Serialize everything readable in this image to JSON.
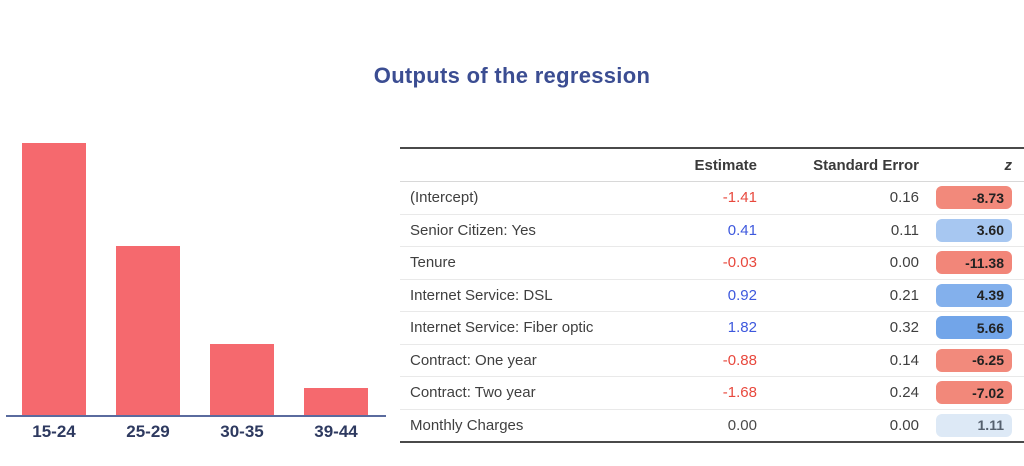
{
  "title": {
    "text": "Outputs of the regression",
    "color": "#3b4d92"
  },
  "colors": {
    "bar": "#f5696e",
    "axis_line": "#5a6b9e",
    "axis_label": "#2e3a60",
    "table_border": "#4a4a4a",
    "estimate_negative": "#e8483d",
    "estimate_positive": "#3d58dd",
    "estimate_neutral": "#4a4a4a"
  },
  "chart_data": [
    {
      "type": "bar",
      "categories": [
        "15-24",
        "25-29",
        "30-35",
        "39-44"
      ],
      "values": [
        1.0,
        0.62,
        0.26,
        0.1
      ],
      "note": "no y-axis, gridlines or value labels shown; values are relative bar heights (tallest = 1.00)",
      "title": "",
      "xlabel": "",
      "ylabel": "",
      "ylim": [
        0,
        1.05
      ],
      "grid": false,
      "legend": false,
      "bar_color": "#f5696e"
    },
    {
      "type": "table",
      "columns": [
        "",
        "Estimate",
        "Standard Error",
        "z"
      ],
      "rows": [
        {
          "label": "(Intercept)",
          "estimate": "-1.41",
          "estimate_color": "#e8483d",
          "std_error": "0.16",
          "z": "-8.73",
          "z_bg": "#f2897b",
          "z_text": "#222222"
        },
        {
          "label": "Senior Citizen: Yes",
          "estimate": "0.41",
          "estimate_color": "#3d58dd",
          "std_error": "0.11",
          "z": "3.60",
          "z_bg": "#a7c7f1",
          "z_text": "#222222"
        },
        {
          "label": "Tenure",
          "estimate": "-0.03",
          "estimate_color": "#e8483d",
          "std_error": "0.00",
          "z": "-11.38",
          "z_bg": "#f28679",
          "z_text": "#222222"
        },
        {
          "label": "Internet Service: DSL",
          "estimate": "0.92",
          "estimate_color": "#3d58dd",
          "std_error": "0.21",
          "z": "4.39",
          "z_bg": "#83b0ec",
          "z_text": "#222222"
        },
        {
          "label": "Internet Service: Fiber optic",
          "estimate": "1.82",
          "estimate_color": "#3d58dd",
          "std_error": "0.32",
          "z": "5.66",
          "z_bg": "#72a5e9",
          "z_text": "#222222"
        },
        {
          "label": "Contract: One year",
          "estimate": "-0.88",
          "estimate_color": "#e8483d",
          "std_error": "0.14",
          "z": "-6.25",
          "z_bg": "#f28a7c",
          "z_text": "#222222"
        },
        {
          "label": "Contract: Two year",
          "estimate": "-1.68",
          "estimate_color": "#e8483d",
          "std_error": "0.24",
          "z": "-7.02",
          "z_bg": "#f2887a",
          "z_text": "#222222"
        },
        {
          "label": "Monthly Charges",
          "estimate": "0.00",
          "estimate_color": "#4a4a4a",
          "std_error": "0.00",
          "z": "1.11",
          "z_bg": "#dde9f6",
          "z_text": "#55606e"
        }
      ]
    }
  ]
}
